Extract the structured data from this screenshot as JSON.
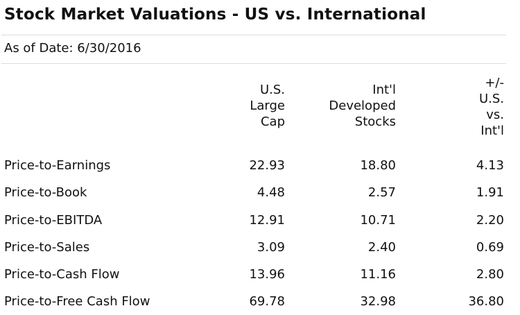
{
  "title": "Stock Market Valuations - US vs. International",
  "as_of": "As of Date: 6/30/2016",
  "columns": {
    "us_large_cap": "U.S.\nLarge\nCap",
    "intl_developed": "Int'l\nDeveloped\nStocks",
    "difference": "+/-\nU.S.\nvs.\nInt'l"
  },
  "rows": [
    {
      "metric": "Price-to-Earnings",
      "us": "22.93",
      "intl": "18.80",
      "diff": "4.13"
    },
    {
      "metric": "Price-to-Book",
      "us": "4.48",
      "intl": "2.57",
      "diff": "1.91"
    },
    {
      "metric": "Price-to-EBITDA",
      "us": "12.91",
      "intl": "10.71",
      "diff": "2.20"
    },
    {
      "metric": "Price-to-Sales",
      "us": "3.09",
      "intl": "2.40",
      "diff": "0.69"
    },
    {
      "metric": "Price-to-Cash Flow",
      "us": "13.96",
      "intl": "11.16",
      "diff": "2.80"
    },
    {
      "metric": "Price-to-Free Cash Flow",
      "us": "69.78",
      "intl": "32.98",
      "diff": "36.80"
    }
  ]
}
